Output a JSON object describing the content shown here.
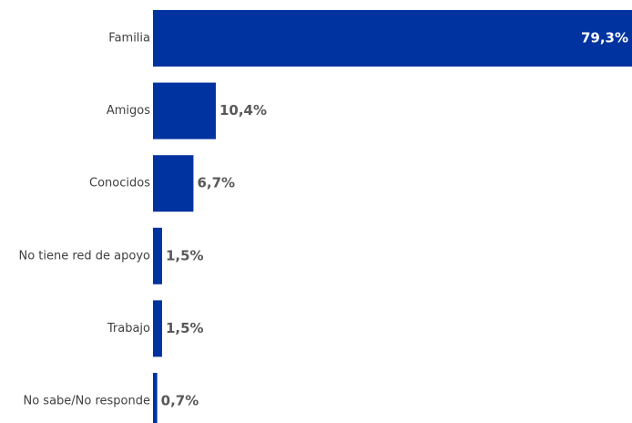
{
  "chart_data": {
    "type": "bar",
    "orientation": "horizontal",
    "categories": [
      "Familia",
      "Amigos",
      "Conocidos",
      "No tiene red de apoyo",
      "Trabajo",
      "No sabe/No responde"
    ],
    "values": [
      79.3,
      10.4,
      6.7,
      1.5,
      1.5,
      0.7
    ],
    "value_labels": [
      "79,3%",
      "10,4%",
      "6,7%",
      "1,5%",
      "1,5%",
      "0,7%"
    ],
    "xlim": [
      0,
      79.3
    ],
    "grid": false,
    "legend": "none",
    "colors": {
      "bar": "#0033A0",
      "inside_label": "#ffffff",
      "outside_label": "#595959",
      "category_label": "#404040"
    }
  }
}
